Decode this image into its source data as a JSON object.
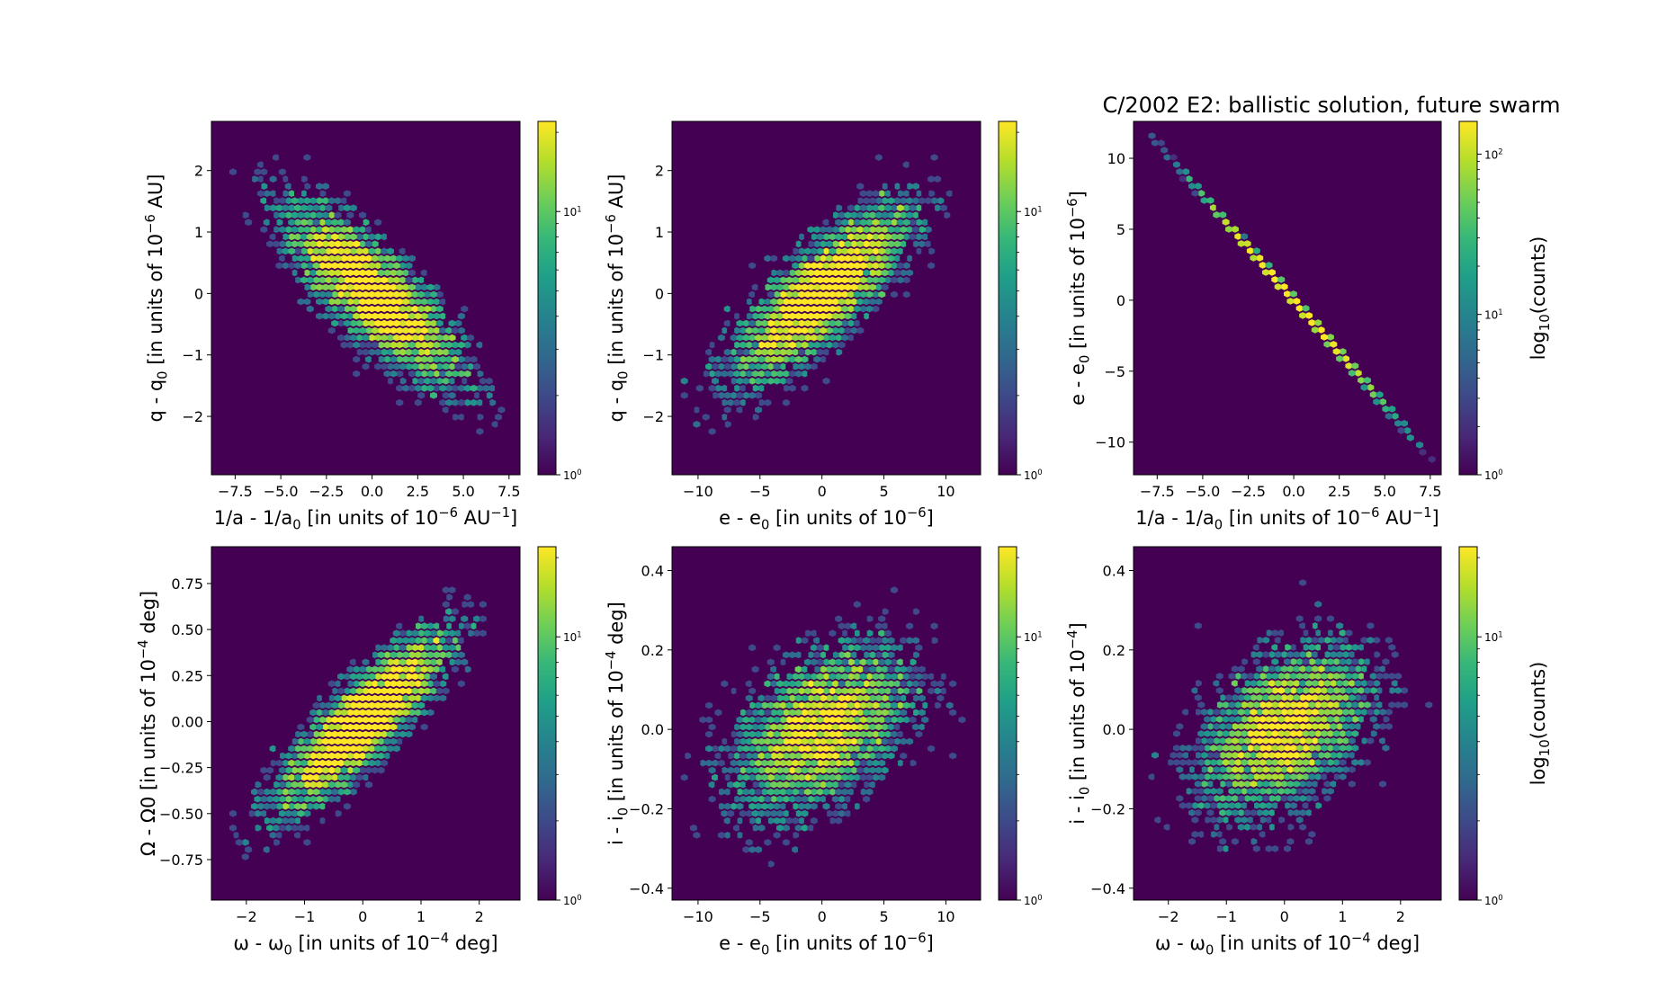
{
  "title": "C/2002 E2:  ballistic solution, future swarm",
  "colormap": {
    "name": "viridis",
    "stops": [
      "#440154",
      "#482878",
      "#3e4989",
      "#31688e",
      "#26828e",
      "#1f9e89",
      "#35b779",
      "#6ece58",
      "#b5de2b",
      "#fde725"
    ],
    "background": "#440154"
  },
  "chart_data": [
    {
      "type": "heatmap",
      "subtype": "hexbin",
      "xlabel": "1/a - 1/a0 [in units of 10−6 AU−1]",
      "ylabel": "q - q0 [in units of 10−6 AU]",
      "xlim": [
        -8.8,
        8.1
      ],
      "ylim": [
        -2.95,
        2.8
      ],
      "xticks": [
        -7.5,
        -5.0,
        -2.5,
        0.0,
        2.5,
        5.0,
        7.5
      ],
      "xtick_labels": [
        "−7.5",
        "−5.0",
        "−2.5",
        "0.0",
        "2.5",
        "5.0",
        "7.5"
      ],
      "yticks": [
        -2,
        -1,
        0,
        1,
        2
      ],
      "ytick_labels": [
        "−2",
        "−1",
        "0",
        "1",
        "2"
      ],
      "correlation": -0.8,
      "x_sigma": 2.5,
      "y_sigma": 0.75,
      "colorbar": {
        "scale": "log",
        "range": [
          1,
          22
        ],
        "tick_labels": [
          "10^0",
          "10^1"
        ],
        "label": ""
      }
    },
    {
      "type": "heatmap",
      "subtype": "hexbin",
      "xlabel": "e - e0 [in units of 10−6]",
      "ylabel": "q - q0 [in units of 10−6 AU]",
      "xlim": [
        -12.1,
        12.8
      ],
      "ylim": [
        -2.95,
        2.8
      ],
      "xticks": [
        -10,
        -5,
        0,
        5,
        10
      ],
      "xtick_labels": [
        "−10",
        "−5",
        "0",
        "5",
        "10"
      ],
      "yticks": [
        -2,
        -1,
        0,
        1,
        2
      ],
      "ytick_labels": [
        "−2",
        "−1",
        "0",
        "1",
        "2"
      ],
      "correlation": 0.8,
      "x_sigma": 3.7,
      "y_sigma": 0.75,
      "colorbar": {
        "scale": "log",
        "range": [
          1,
          22
        ],
        "tick_labels": [
          "10^0",
          "10^1"
        ],
        "label": ""
      }
    },
    {
      "type": "heatmap",
      "subtype": "hexbin",
      "xlabel": "1/a - 1/a0 [in units of 10−6 AU−1]",
      "ylabel": "e - e0 [in units of 10−6]",
      "xlim": [
        -8.8,
        8.1
      ],
      "ylim": [
        -12.3,
        12.6
      ],
      "xticks": [
        -7.5,
        -5.0,
        -2.5,
        0.0,
        2.5,
        5.0,
        7.5
      ],
      "xtick_labels": [
        "−7.5",
        "−5.0",
        "−2.5",
        "0.0",
        "2.5",
        "5.0",
        "7.5"
      ],
      "yticks": [
        -10,
        -5,
        0,
        5,
        10
      ],
      "ytick_labels": [
        "−10",
        "−5",
        "0",
        "5",
        "10"
      ],
      "correlation": -1.0,
      "x_sigma": 2.5,
      "y_sigma": 3.7,
      "colorbar": {
        "scale": "log",
        "range": [
          1,
          160
        ],
        "tick_labels": [
          "10^0",
          "10^1",
          "10^2"
        ],
        "label": "log10(counts)"
      }
    },
    {
      "type": "heatmap",
      "subtype": "hexbin",
      "xlabel": "ω - ω0 [in units of 10−4 deg]",
      "ylabel": "Ω - Ω0 [in units of 10−4 deg]",
      "xlim": [
        -2.6,
        2.7
      ],
      "ylim": [
        -0.97,
        0.95
      ],
      "xticks": [
        -2,
        -1,
        0,
        1,
        2
      ],
      "xtick_labels": [
        "−2",
        "−1",
        "0",
        "1",
        "2"
      ],
      "yticks": [
        -0.75,
        -0.5,
        -0.25,
        0.0,
        0.25,
        0.5,
        0.75
      ],
      "ytick_labels": [
        "−0.75",
        "−0.50",
        "−0.25",
        "0.00",
        "0.25",
        "0.50",
        "0.75"
      ],
      "correlation": 0.85,
      "x_sigma": 0.75,
      "y_sigma": 0.25,
      "colorbar": {
        "scale": "log",
        "range": [
          1,
          22
        ],
        "tick_labels": [
          "10^0",
          "10^1"
        ],
        "label": ""
      }
    },
    {
      "type": "heatmap",
      "subtype": "hexbin",
      "xlabel": "e - e0 [in units of 10−6]",
      "ylabel": "i - i0 [in units of 10−4 deg]",
      "xlim": [
        -12.1,
        12.8
      ],
      "ylim": [
        -0.43,
        0.46
      ],
      "xticks": [
        -10,
        -5,
        0,
        5,
        10
      ],
      "xtick_labels": [
        "−10",
        "−5",
        "0",
        "5",
        "10"
      ],
      "yticks": [
        -0.4,
        -0.2,
        0.0,
        0.2,
        0.4
      ],
      "ytick_labels": [
        "−0.4",
        "−0.2",
        "0.0",
        "0.2",
        "0.4"
      ],
      "correlation": 0.45,
      "x_sigma": 3.7,
      "y_sigma": 0.11,
      "colorbar": {
        "scale": "log",
        "range": [
          1,
          22
        ],
        "tick_labels": [
          "10^0",
          "10^1"
        ],
        "label": ""
      }
    },
    {
      "type": "heatmap",
      "subtype": "hexbin",
      "xlabel": "ω - ω0 [in units of 10−4 deg]",
      "ylabel": "i - i0 [in units of 10−4]",
      "xlim": [
        -2.6,
        2.7
      ],
      "ylim": [
        -0.43,
        0.46
      ],
      "xticks": [
        -2,
        -1,
        0,
        1,
        2
      ],
      "xtick_labels": [
        "−2",
        "−1",
        "0",
        "1",
        "2"
      ],
      "yticks": [
        -0.4,
        -0.2,
        0.0,
        0.2,
        0.4
      ],
      "ytick_labels": [
        "−0.4",
        "−0.2",
        "0.0",
        "0.2",
        "0.4"
      ],
      "correlation": 0.45,
      "x_sigma": 0.75,
      "y_sigma": 0.11,
      "colorbar": {
        "scale": "log",
        "range": [
          1,
          22
        ],
        "tick_labels": [
          "10^0",
          "10^1"
        ],
        "label": "log10(counts)"
      }
    }
  ]
}
